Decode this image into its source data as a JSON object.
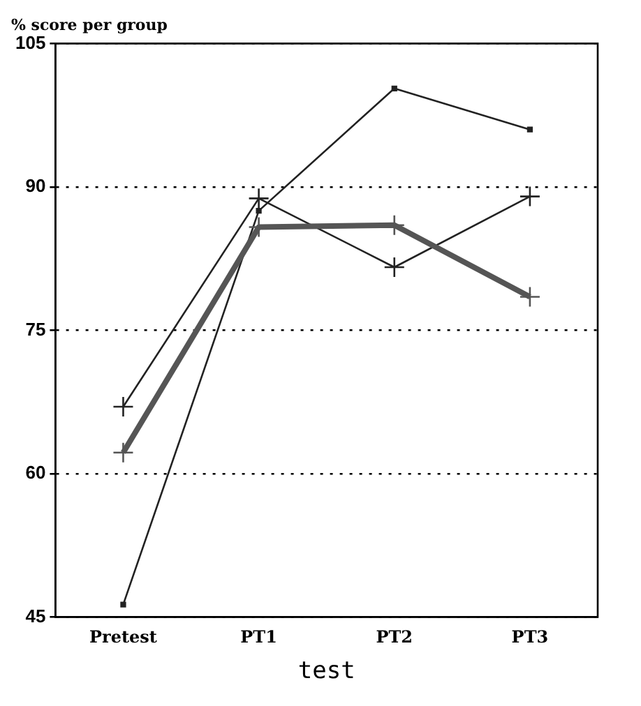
{
  "chart_data": {
    "type": "line",
    "ylabel": "% score per group",
    "xlabel": "test",
    "categories": [
      "Pretest",
      "PT1",
      "PT2",
      "PT3"
    ],
    "series": [
      {
        "color": "#222222",
        "marker": "square",
        "values": [
          46.3,
          87.5,
          100.3,
          96
        ]
      },
      {
        "color": "#222222",
        "marker": "cross",
        "values": [
          67,
          88.8,
          81.6,
          89
        ]
      },
      {
        "color": "#555555",
        "marker": "cross",
        "values": [
          62.2,
          85.8,
          86,
          78.5
        ]
      }
    ],
    "ylim": [
      45,
      105
    ],
    "yticks": [
      45,
      60,
      75,
      90,
      105
    ],
    "grid": "y",
    "legend": false
  }
}
